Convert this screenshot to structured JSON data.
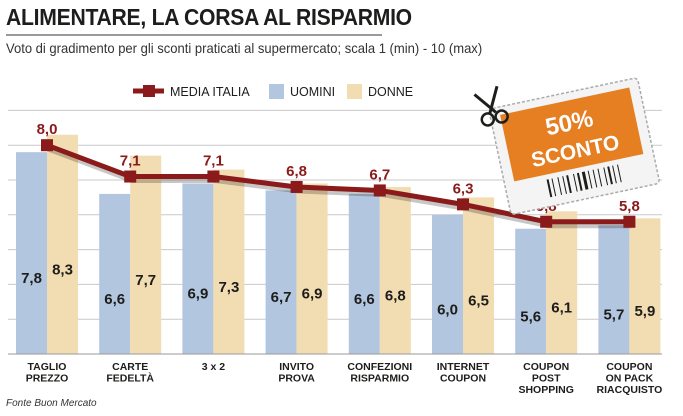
{
  "header": {
    "title": "ALIMENTARE, LA CORSA AL RISPARMIO",
    "subtitle": "Voto di gradimento per gli sconti praticati al supermercato; scala 1 (min) - 10 (max)"
  },
  "source": "Fonte Buon Mercato",
  "coupon": {
    "line1": "50%",
    "line2": "SCONTO"
  },
  "colors": {
    "media": "#8b1a1a",
    "uomini": "#b3c6e0",
    "donne": "#f2dcb2",
    "coupon": "#e67e22",
    "grid": "#c9c9c9"
  },
  "chart_data": {
    "type": "bar",
    "categories": [
      [
        "TAGLIO",
        "PREZZO"
      ],
      [
        "CARTE",
        "FEDELTÀ"
      ],
      [
        "3 x 2"
      ],
      [
        "INVITO",
        "PROVA"
      ],
      [
        "CONFEZIONI",
        "RISPARMIO"
      ],
      [
        "INTERNET",
        "COUPON"
      ],
      [
        "COUPON",
        "POST",
        "SHOPPING"
      ],
      [
        "COUPON",
        "ON PACK",
        "RIACQUISTO"
      ]
    ],
    "series": [
      {
        "name": "MEDIA ITALIA",
        "type": "line",
        "values": [
          "8,0",
          "7,1",
          "7,1",
          "6,8",
          "6,7",
          "6,3",
          "5,8",
          "5,8"
        ]
      },
      {
        "name": "UOMINI",
        "type": "bar",
        "values": [
          "7,8",
          "6,6",
          "6,9",
          "6,7",
          "6,6",
          "6,0",
          "5,6",
          "5,7"
        ]
      },
      {
        "name": "DONNE",
        "type": "bar",
        "values": [
          "8,3",
          "7,7",
          "7,3",
          "6,9",
          "6,8",
          "6,5",
          "6,1",
          "5,9"
        ]
      }
    ],
    "ylim": [
      2,
      9
    ],
    "grid": true,
    "legend": "top"
  }
}
